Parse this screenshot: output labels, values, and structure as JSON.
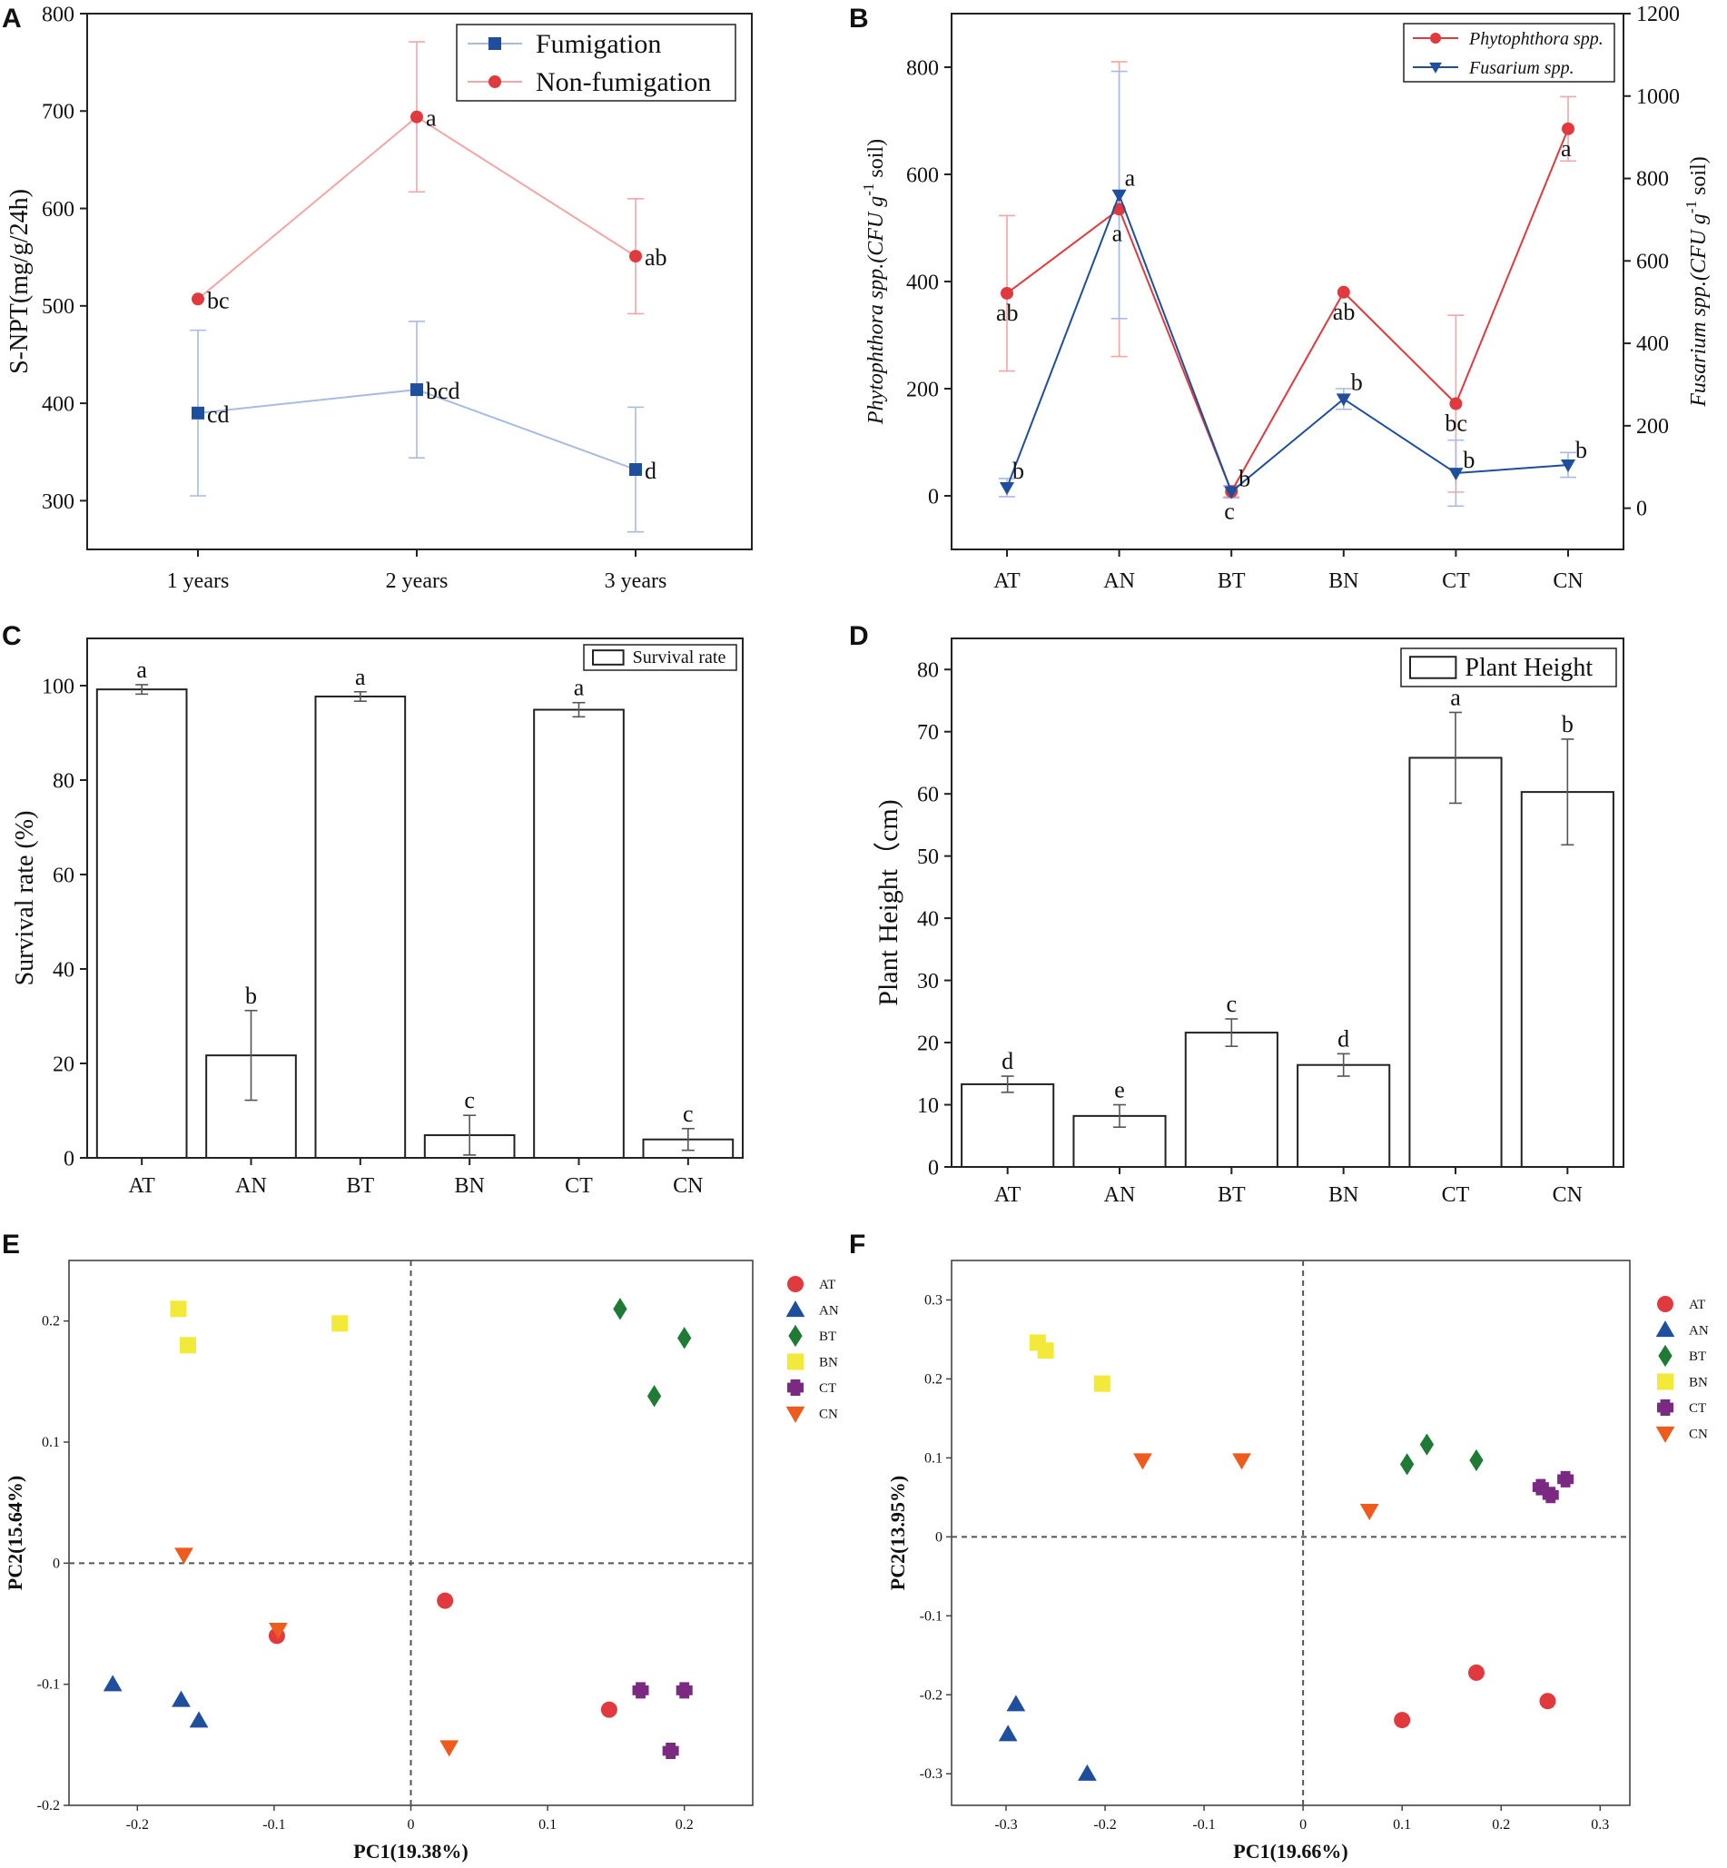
{
  "colors": {
    "red": "#e03a3e",
    "blue": "#1f4e9c",
    "lightred": "#f2a6a6",
    "lightblue": "#a8bce0",
    "green": "#1e7a35",
    "yellow": "#f2e93a",
    "purple": "#7b2a82",
    "orange": "#ef5a1d"
  },
  "chart_data": [
    {
      "panel": "A",
      "type": "line",
      "ylabel": "S-NPT(mg/g/24h)",
      "categories": [
        "1 years",
        "2 years",
        "3 years"
      ],
      "ylim": [
        250,
        800
      ],
      "yticks": [
        300,
        400,
        500,
        600,
        700,
        800
      ],
      "series": [
        {
          "name": "Fumigation",
          "color": "#1f4e9c",
          "light": "#a8bce0",
          "marker": "square",
          "values": [
            390,
            414,
            332
          ],
          "err": [
            85,
            70,
            64
          ],
          "letters": [
            "cd",
            "bcd",
            "d"
          ]
        },
        {
          "name": "Non-fumigation",
          "color": "#e03a3e",
          "light": "#f2a6a6",
          "marker": "circle",
          "values": [
            507,
            694,
            551
          ],
          "err": [
            0,
            77,
            59
          ],
          "letters": [
            "bc",
            "a",
            "ab"
          ]
        }
      ]
    },
    {
      "panel": "B",
      "type": "line",
      "ylabel": "Phytophthora spp.(CFU g",
      "ylabel_sup": "-1",
      "ylabel_tail": " soil)",
      "y2label": "Fusarium spp.(CFU g",
      "y2label_sup": "-1",
      "y2label_tail": " soil)",
      "categories": [
        "AT",
        "AN",
        "BT",
        "BN",
        "CT",
        "CN"
      ],
      "ylim": [
        -100,
        900
      ],
      "yticks": [
        0,
        200,
        400,
        600,
        800
      ],
      "y2lim": [
        -100,
        1200
      ],
      "y2ticks": [
        0,
        200,
        400,
        600,
        800,
        1000,
        1200
      ],
      "series": [
        {
          "name": "Phytophthora spp.",
          "axis": "left",
          "color": "#e03a3e",
          "light": "#f2a6a6",
          "marker": "circle",
          "values": [
            378,
            535,
            8,
            380,
            172,
            685
          ],
          "err": [
            145,
            275,
            10,
            0,
            165,
            60
          ],
          "letters": [
            "ab",
            "a",
            "c",
            "ab",
            "bc",
            "a"
          ]
        },
        {
          "name": "Fusarium spp.",
          "axis": "right",
          "color": "#1f4e9c",
          "light": "#a8bce0",
          "marker": "triangle-down",
          "values": [
            50,
            760,
            40,
            265,
            85,
            105
          ],
          "err": [
            22,
            300,
            15,
            25,
            80,
            30
          ],
          "letters": [
            "b",
            "a",
            "b",
            "b",
            "b",
            "b"
          ]
        }
      ]
    },
    {
      "panel": "C",
      "type": "bar",
      "ylabel": "Survival rate (%)",
      "legend": "Survival rate",
      "categories": [
        "AT",
        "AN",
        "BT",
        "BN",
        "CT",
        "CN"
      ],
      "values": [
        99.2,
        21.7,
        97.7,
        4.8,
        94.9,
        3.9
      ],
      "err": [
        1.0,
        9.5,
        1.0,
        4.2,
        1.5,
        2.3
      ],
      "letters": [
        "a",
        "b",
        "a",
        "c",
        "a",
        "c"
      ],
      "ylim": [
        0,
        110
      ],
      "yticks": [
        0,
        20,
        40,
        60,
        80,
        100
      ]
    },
    {
      "panel": "D",
      "type": "bar",
      "ylabel": "Plant Height（cm)",
      "legend": "Plant Height",
      "categories": [
        "AT",
        "AN",
        "BT",
        "BN",
        "CT",
        "CN"
      ],
      "values": [
        13.3,
        8.2,
        21.6,
        16.4,
        65.8,
        60.3
      ],
      "err": [
        1.3,
        1.8,
        2.2,
        1.8,
        7.3,
        8.5
      ],
      "letters": [
        "d",
        "e",
        "c",
        "d",
        "a",
        "b"
      ],
      "ylim": [
        0,
        85
      ],
      "yticks": [
        0,
        10,
        20,
        30,
        40,
        50,
        60,
        70,
        80
      ]
    },
    {
      "panel": "E",
      "type": "scatter",
      "xlabel": "PC1(19.38%)",
      "ylabel": "PC2(15.64%)",
      "xlim": [
        -0.25,
        0.25
      ],
      "ylim": [
        -0.2,
        0.25
      ],
      "xticks": [
        -0.2,
        -0.1,
        0,
        0.1,
        0.2
      ],
      "xtick_labels": [
        "-0.2",
        "-0.1",
        "0",
        "0.1",
        "0.2"
      ],
      "yticks": [
        -0.2,
        -0.1,
        0,
        0.1,
        0.2
      ],
      "ytick_labels": [
        "-0.2",
        "-0.1",
        "0",
        "0.1",
        "0.2"
      ],
      "series": [
        {
          "name": "AT",
          "marker": "circle",
          "color": "#e03a3e",
          "points": [
            [
              0.025,
              -0.031
            ],
            [
              -0.098,
              -0.06
            ],
            [
              0.145,
              -0.121
            ]
          ]
        },
        {
          "name": "AN",
          "marker": "triangle",
          "color": "#1f4e9c",
          "points": [
            [
              -0.218,
              -0.1
            ],
            [
              -0.168,
              -0.113
            ],
            [
              -0.155,
              -0.13
            ]
          ]
        },
        {
          "name": "BT",
          "marker": "diamond",
          "color": "#1e7a35",
          "points": [
            [
              0.153,
              0.21
            ],
            [
              0.2,
              0.186
            ],
            [
              0.178,
              0.138
            ]
          ]
        },
        {
          "name": "BN",
          "marker": "square",
          "color": "#f2e93a",
          "points": [
            [
              -0.17,
              0.21
            ],
            [
              -0.163,
              0.18
            ],
            [
              -0.052,
              0.198
            ]
          ]
        },
        {
          "name": "CT",
          "marker": "plus",
          "color": "#7b2a82",
          "points": [
            [
              0.168,
              -0.105
            ],
            [
              0.2,
              -0.105
            ],
            [
              0.19,
              -0.155
            ]
          ]
        },
        {
          "name": "CN",
          "marker": "triangle-down",
          "color": "#ef5a1d",
          "points": [
            [
              -0.166,
              0.007
            ],
            [
              -0.097,
              -0.055
            ],
            [
              0.028,
              -0.152
            ]
          ]
        }
      ]
    },
    {
      "panel": "F",
      "type": "scatter",
      "xlabel": "PC1(19.66%)",
      "ylabel": "PC2(13.95%)",
      "xlim": [
        -0.355,
        0.33
      ],
      "ylim": [
        -0.34,
        0.35
      ],
      "xticks": [
        -0.3,
        -0.2,
        -0.1,
        0,
        0.1,
        0.2,
        0.3
      ],
      "xtick_labels": [
        "-0.3",
        "-0.2",
        "-0.1",
        "0",
        "0.1",
        "0.2",
        "0.3"
      ],
      "yticks": [
        -0.3,
        -0.2,
        -0.1,
        0,
        0.1,
        0.2,
        0.3
      ],
      "ytick_labels": [
        "-0.3",
        "-0.2",
        "-0.1",
        "0",
        "0.1",
        "0.2",
        "0.3"
      ],
      "series": [
        {
          "name": "AT",
          "marker": "circle",
          "color": "#e03a3e",
          "points": [
            [
              0.1,
              -0.232
            ],
            [
              0.175,
              -0.172
            ],
            [
              0.247,
              -0.208
            ]
          ]
        },
        {
          "name": "AN",
          "marker": "triangle",
          "color": "#1f4e9c",
          "points": [
            [
              -0.29,
              -0.212
            ],
            [
              -0.298,
              -0.25
            ],
            [
              -0.218,
              -0.3
            ]
          ]
        },
        {
          "name": "BT",
          "marker": "diamond",
          "color": "#1e7a35",
          "points": [
            [
              0.105,
              0.092
            ],
            [
              0.125,
              0.117
            ],
            [
              0.175,
              0.097
            ]
          ]
        },
        {
          "name": "BN",
          "marker": "square",
          "color": "#f2e93a",
          "points": [
            [
              -0.268,
              0.246
            ],
            [
              -0.26,
              0.236
            ],
            [
              -0.203,
              0.194
            ]
          ]
        },
        {
          "name": "CT",
          "marker": "plus",
          "color": "#7b2a82",
          "points": [
            [
              0.24,
              0.063
            ],
            [
              0.25,
              0.053
            ],
            [
              0.265,
              0.073
            ]
          ]
        },
        {
          "name": "CN",
          "marker": "triangle-down",
          "color": "#ef5a1d",
          "points": [
            [
              -0.162,
              0.097
            ],
            [
              -0.062,
              0.097
            ],
            [
              0.067,
              0.033
            ]
          ]
        }
      ]
    }
  ]
}
